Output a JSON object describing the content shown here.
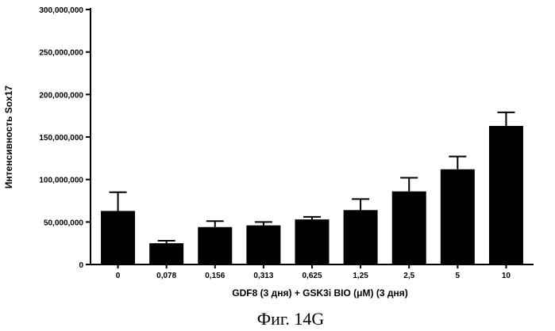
{
  "chart_data": {
    "type": "bar",
    "categories": [
      "0",
      "0,078",
      "0,156",
      "0,313",
      "0,625",
      "1,25",
      "2,5",
      "5",
      "10"
    ],
    "series": [
      {
        "values": [
          63000000,
          25000000,
          44000000,
          46000000,
          53000000,
          64000000,
          86000000,
          112000000,
          163000000
        ],
        "error_upper": [
          22000000,
          3000000,
          7000000,
          4000000,
          3000000,
          13000000,
          16000000,
          15000000,
          16000000
        ]
      }
    ],
    "ylabel": "Интенсивность Sox17",
    "xlabel": "GDF8 (3 дня) + GSK3i BIO (μM) (3 дня)",
    "ylim": [
      0,
      300000000
    ],
    "yticks": [
      0,
      50000000,
      100000000,
      150000000,
      200000000,
      250000000,
      300000000
    ],
    "ytick_labels": [
      "0",
      "50,000,000",
      "100,000,000",
      "150,000,000",
      "200,000,000",
      "250,000,000",
      "300,000,000"
    ],
    "bar_color": "#000000",
    "grid": false,
    "caption": "Фиг. 14G"
  }
}
